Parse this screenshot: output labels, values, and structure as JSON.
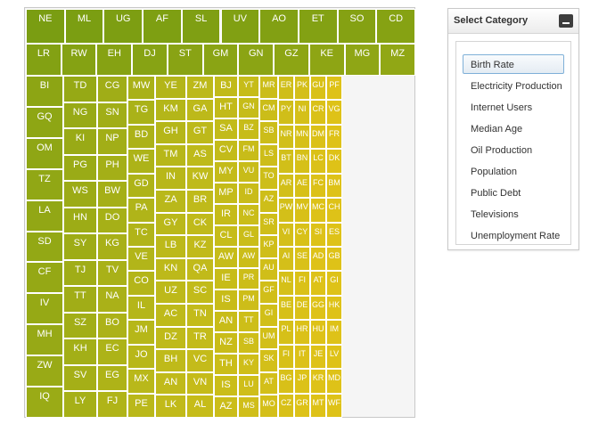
{
  "treemap": {
    "color_scale": {
      "high": "#7a9d12",
      "mid": "#bcb91a",
      "low": "#dec218"
    },
    "columns": [
      [
        "NE",
        "ML",
        "UG",
        "AF",
        "SL",
        "UV",
        "AO",
        "ET",
        "SO",
        "CD"
      ],
      [
        "LR",
        "RW",
        "EH",
        "DJ",
        "ST",
        "GM",
        "GN",
        "GZ",
        "KE",
        "MG",
        "MZ"
      ],
      [
        "BI",
        "GQ",
        "OM",
        "TZ",
        "LA",
        "SD",
        "CF",
        "IV",
        "MH",
        "ZW",
        "IQ"
      ],
      [
        "TD",
        "NG",
        "KI",
        "PG",
        "WS",
        "HN",
        "SY",
        "TJ",
        "TT",
        "SZ",
        "KH",
        "SV",
        "LY"
      ],
      [
        "CG",
        "SN",
        "NP",
        "PH",
        "BW",
        "DO",
        "KG",
        "TV",
        "NA",
        "BO",
        "EC",
        "EG",
        "FJ"
      ],
      [
        "MW",
        "TG",
        "BD",
        "WE",
        "GD",
        "PA",
        "TC",
        "VE",
        "CO",
        "IL",
        "JM",
        "JO",
        "MX",
        "PE"
      ],
      [
        "YE",
        "KM",
        "GH",
        "TM",
        "IN",
        "ZA",
        "GY",
        "LB",
        "KN",
        "UZ",
        "AC",
        "DZ",
        "BH",
        "AN",
        "LK"
      ],
      [
        "ZM",
        "GA",
        "GT",
        "AS",
        "KW",
        "BR",
        "CK",
        "KZ",
        "QA",
        "SC",
        "TN",
        "TR",
        "VC",
        "VN",
        "AL"
      ],
      [
        "BJ",
        "HT",
        "SA",
        "CV",
        "MY",
        "MP",
        "IR",
        "CL",
        "AW",
        "IE",
        "IS",
        "AN",
        "NZ",
        "TH",
        "IS",
        "AZ"
      ],
      [
        "YT",
        "GN",
        "BZ",
        "FM",
        "VU",
        "ID",
        "NC",
        "GL",
        "AW",
        "PR",
        "PM",
        "TT",
        "SB",
        "KY",
        "LU",
        "MS"
      ],
      [
        "MR",
        "CM",
        "SB",
        "LS",
        "TO",
        "AZ",
        "SR",
        "KP",
        "AU",
        "GF",
        "GI",
        "UM",
        "SK",
        "AT",
        "MO"
      ],
      [
        "ER",
        "PY",
        "NR",
        "BT",
        "AR",
        "PW",
        "VI",
        "AI",
        "NL",
        "BE",
        "PL",
        "FI",
        "BG",
        "CZ"
      ],
      [
        "PK",
        "NI",
        "MN",
        "BN",
        "AE",
        "MV",
        "CY",
        "SE",
        "FI",
        "DE",
        "HR",
        "IT",
        "JP",
        "GR"
      ],
      [
        "GU",
        "CR",
        "DM",
        "LC",
        "FC",
        "MC",
        "SI",
        "AD",
        "AT",
        "GG",
        "HU",
        "JE",
        "KR",
        "MT"
      ],
      [
        "PF",
        "VG",
        "FR",
        "DK",
        "BM",
        "CH",
        "ES",
        "GB",
        "GI",
        "HK",
        "IM",
        "LV",
        "MD",
        "WF"
      ]
    ]
  },
  "panel": {
    "title": "Select Category",
    "selected_index": 0,
    "categories": [
      "Birth Rate",
      "Electricity Production",
      "Internet Users",
      "Median Age",
      "Oil Production",
      "Population",
      "Public Debt",
      "Televisions",
      "Unemployment Rate"
    ]
  }
}
